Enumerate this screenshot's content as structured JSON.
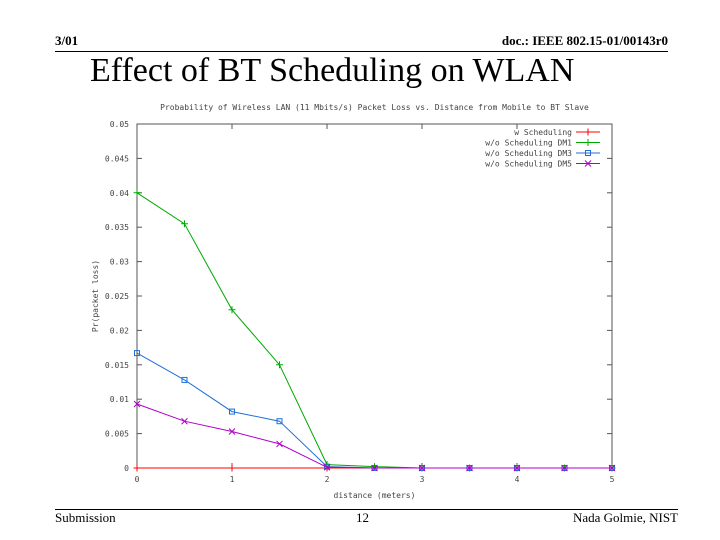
{
  "header": {
    "date": "3/01",
    "doc_id": "doc.: IEEE 802.15-01/00143r0"
  },
  "slide": {
    "title": "Effect of BT Scheduling on WLAN"
  },
  "footer": {
    "left": "Submission",
    "page": "12",
    "author": "Nada Golmie, NIST"
  },
  "chart_data": {
    "type": "line",
    "title": "Probability of Wireless LAN (11 Mbits/s) Packet Loss vs. Distance from Mobile to BT Slave",
    "xlabel": "distance (meters)",
    "ylabel": "Pr(packet loss)",
    "xlim": [
      0,
      5
    ],
    "ylim": [
      0,
      0.05
    ],
    "xticks": [
      0,
      1,
      2,
      3,
      4,
      5
    ],
    "yticks": [
      0,
      0.005,
      0.01,
      0.015,
      0.02,
      0.025,
      0.03,
      0.035,
      0.04,
      0.045,
      0.05
    ],
    "ytick_labels": [
      "0",
      "0.005",
      "0.01",
      "0.015",
      "0.02",
      "0.025",
      "0.03",
      "0.035",
      "0.04",
      "0.045",
      "0.05"
    ],
    "legend_position": "top-right",
    "series": [
      {
        "name": "w Scheduling",
        "color": "#ff0000",
        "marker": "plus",
        "x": [
          0,
          1,
          2,
          3,
          4,
          5
        ],
        "y": [
          0,
          0,
          0,
          0,
          0,
          0
        ]
      },
      {
        "name": "w/o Scheduling DM1",
        "color": "#00aa00",
        "marker": "plus",
        "x": [
          0,
          0.5,
          1,
          1.5,
          2,
          2.5,
          3,
          3.5,
          4,
          4.5,
          5
        ],
        "y": [
          0.04,
          0.0355,
          0.023,
          0.015,
          0.0005,
          0.0002,
          0,
          0,
          0,
          0,
          0
        ]
      },
      {
        "name": "w/o Scheduling DM3",
        "color": "#1e6fd9",
        "marker": "square",
        "x": [
          0,
          0.5,
          1,
          1.5,
          2,
          2.5,
          3,
          3.5,
          4,
          4.5,
          5
        ],
        "y": [
          0.0167,
          0.0128,
          0.0082,
          0.0068,
          0.0002,
          0,
          0,
          0,
          0,
          0,
          0
        ]
      },
      {
        "name": "w/o Scheduling DM5",
        "color": "#b000c8",
        "marker": "cross",
        "x": [
          0,
          0.5,
          1,
          1.5,
          2,
          2.5,
          3,
          3.5,
          4,
          4.5,
          5
        ],
        "y": [
          0.0093,
          0.0068,
          0.0053,
          0.0035,
          0.0001,
          0,
          0,
          0,
          0,
          0,
          0
        ]
      }
    ]
  }
}
